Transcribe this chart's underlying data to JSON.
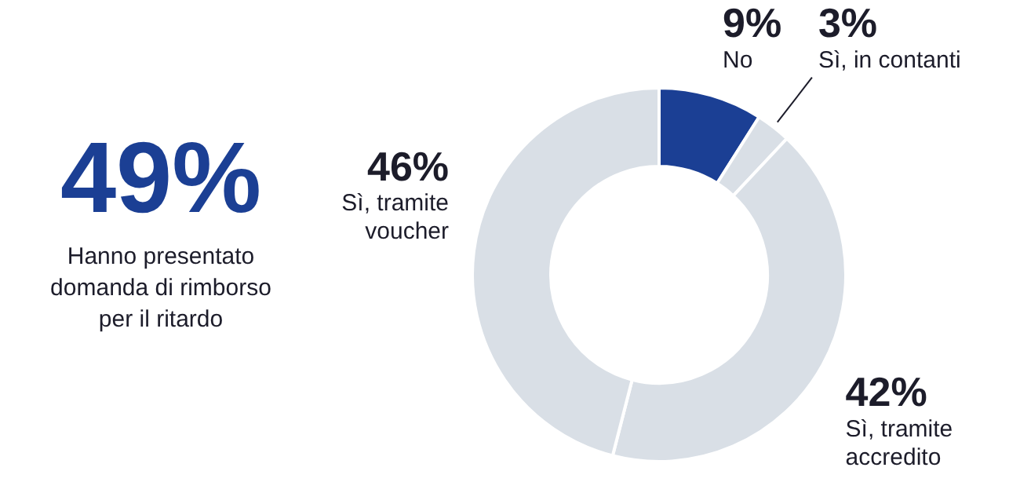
{
  "chart_data": [
    {
      "type": "other",
      "title": "49%",
      "subtitle": "Hanno presentato domanda di rimborso per il ritardo"
    },
    {
      "type": "donut",
      "categories": [
        "No",
        "Sì, in contanti",
        "Sì, tramite accredito",
        "Sì, tramite voucher"
      ],
      "values": [
        9,
        3,
        42,
        46
      ],
      "colors": [
        "#1b3f94",
        "#d9dfe6",
        "#d9dfe6",
        "#d9dfe6"
      ],
      "value_labels": [
        "9%",
        "3%",
        "42%",
        "46%"
      ]
    }
  ]
}
